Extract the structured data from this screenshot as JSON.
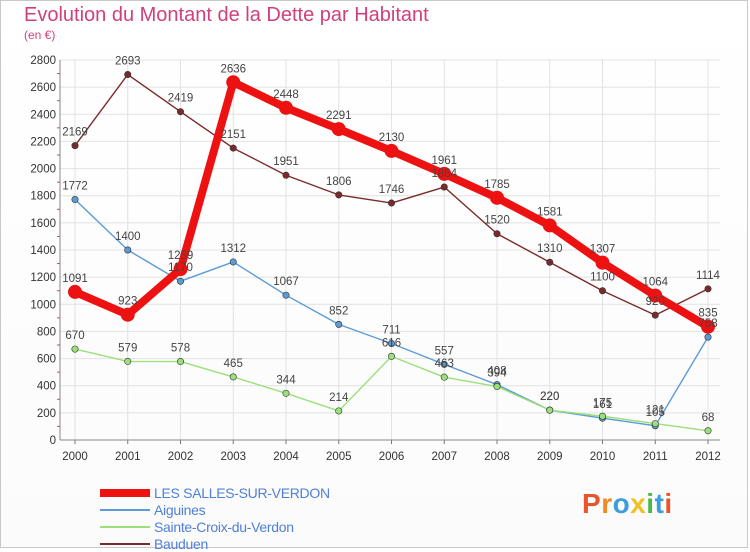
{
  "title": "Evolution du Montant de la Dette par Habitant",
  "subtitle": "(en €)",
  "logo": {
    "text": "Proxiti",
    "colors": [
      "#e8542b",
      "#f08a24",
      "#3c9de0",
      "#f0c020",
      "#4db848",
      "#3c9de0",
      "#e8542b"
    ]
  },
  "chart_data": {
    "type": "line",
    "title": "Evolution du Montant de la Dette par Habitant",
    "ylabel": "(en €)",
    "xlabel": "",
    "x": [
      "2000",
      "2001",
      "2002",
      "2003",
      "2004",
      "2005",
      "2006",
      "2007",
      "2008",
      "2009",
      "2010",
      "2011",
      "2012"
    ],
    "yticks": [
      0,
      200,
      400,
      600,
      800,
      1000,
      1200,
      1400,
      1600,
      1800,
      2000,
      2200,
      2400,
      2600,
      2800
    ],
    "ylim": [
      0,
      2800
    ],
    "grid": true,
    "legend": "bottom-left",
    "series": [
      {
        "name": "LES SALLES-SUR-VERDON",
        "color": "#ee1111",
        "emphasis": true,
        "values": [
          1091,
          923,
          1259,
          2636,
          2448,
          2291,
          2130,
          1961,
          1785,
          1581,
          1307,
          1064,
          835
        ]
      },
      {
        "name": "Aiguines",
        "color": "#5b9bd5",
        "emphasis": false,
        "values": [
          1772,
          1400,
          1170,
          1312,
          1067,
          852,
          711,
          557,
          408,
          220,
          161,
          105,
          758
        ]
      },
      {
        "name": "Sainte-Croix-du-Verdon",
        "color": "#9be07a",
        "emphasis": false,
        "values": [
          670,
          579,
          578,
          465,
          344,
          214,
          616,
          463,
          394,
          220,
          175,
          121,
          68
        ]
      },
      {
        "name": "Bauduen",
        "color": "#7a2a2a",
        "emphasis": false,
        "values": [
          2169,
          2693,
          2419,
          2151,
          1951,
          1806,
          1746,
          1864,
          1520,
          1310,
          1100,
          920,
          1114
        ]
      }
    ]
  }
}
